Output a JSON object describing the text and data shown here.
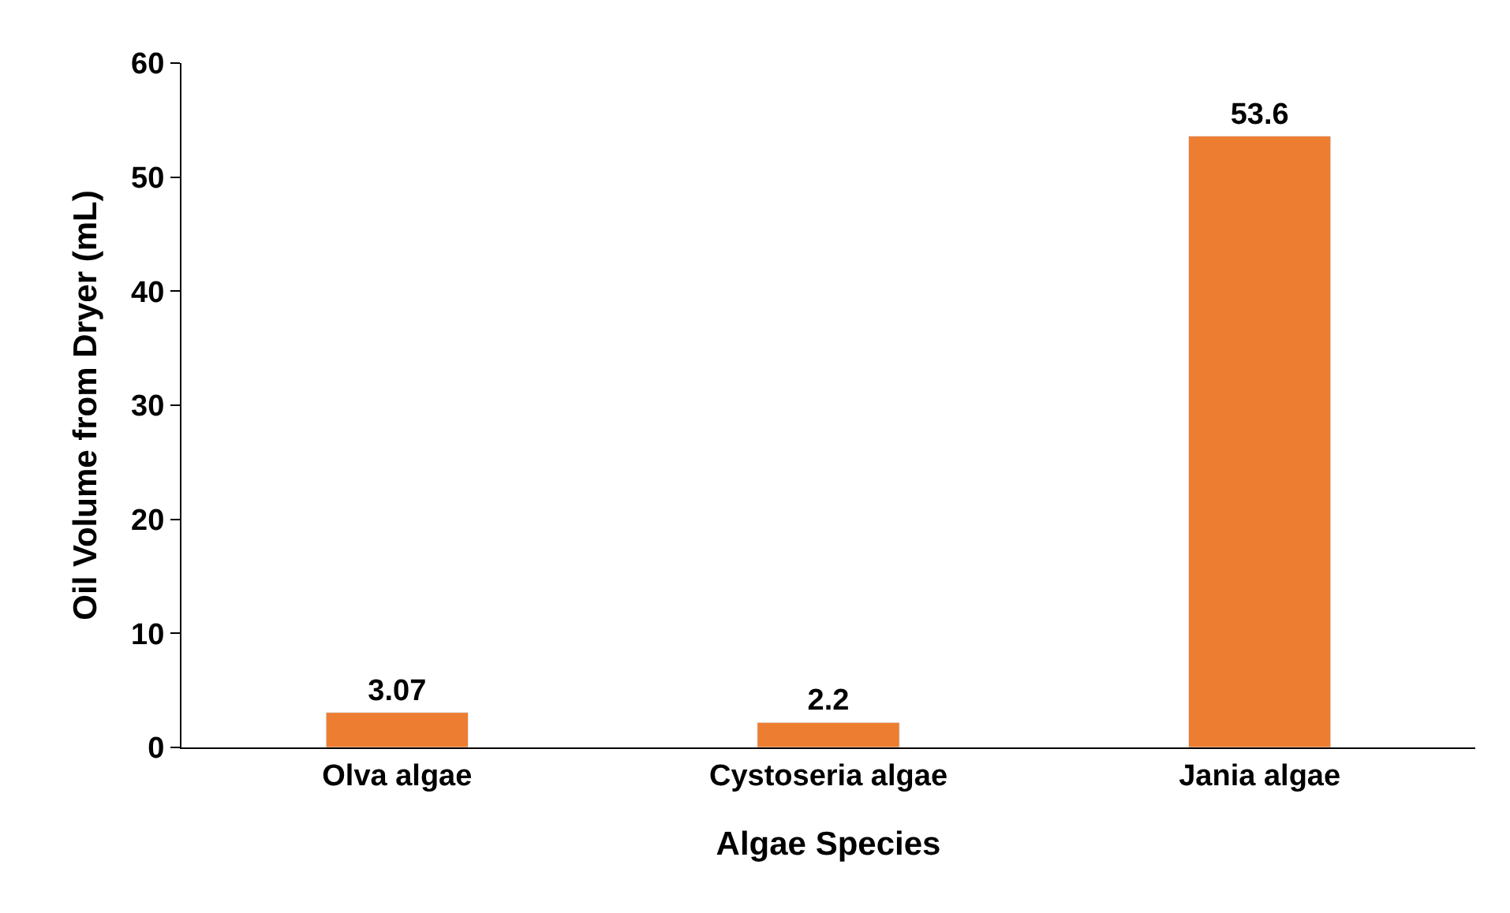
{
  "chart_data": {
    "type": "bar",
    "xlabel": "Algae Species",
    "ylabel": "Oil Volume from Dryer (mL)",
    "categories": [
      "Olva algae",
      "Cystoseria algae",
      "Jania algae"
    ],
    "values": [
      3.07,
      2.2,
      53.6
    ],
    "color": "#ed7d31",
    "ylim": [
      0,
      60
    ],
    "yticks": [
      0,
      10,
      20,
      30,
      40,
      50,
      60
    ],
    "data_labels": true
  }
}
